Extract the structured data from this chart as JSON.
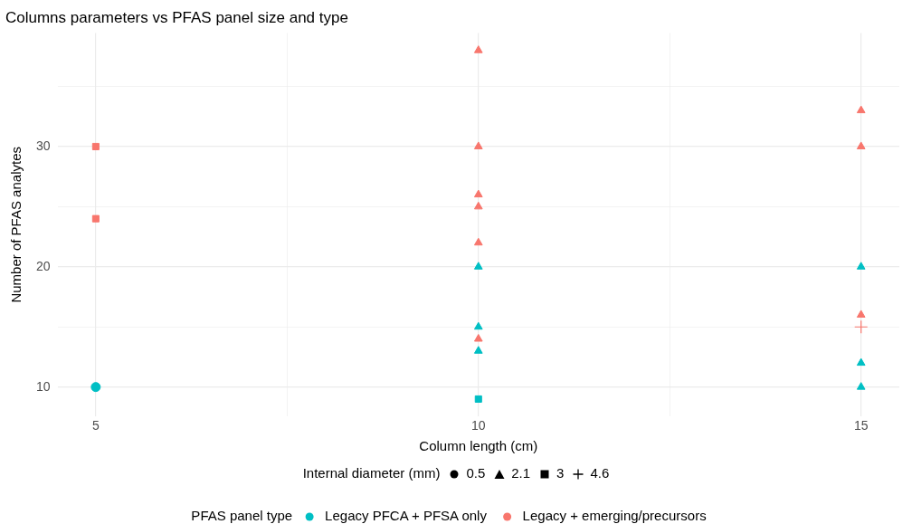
{
  "chart_data": {
    "type": "scatter",
    "title": "Columns parameters vs PFAS panel size and type",
    "xlabel": "Column length (cm)",
    "ylabel": "Number of PFAS analytes",
    "legend_title": "PFAS panel type",
    "legend": "bottom",
    "xlim": [
      4.5,
      15.5
    ],
    "xticks": [
      5,
      {
        "value": 7.5,
        "label": null
      },
      10,
      {
        "value": 12.5,
        "label": null
      },
      15
    ],
    "ylim": [
      7.55,
      39.45
    ],
    "yticks": [
      10,
      {
        "value": 15,
        "label": null
      },
      20,
      {
        "value": 25,
        "label": null
      },
      30,
      {
        "value": 35,
        "label": null
      }
    ],
    "grid": true,
    "series": [
      {
        "name": "Legacy PFCA + PFSA only",
        "color": "#00bfc4",
        "marker": [
          "circle",
          "triangle",
          "triangle",
          "triangle",
          "triangle",
          "triangle",
          "triangle",
          "square"
        ],
        "x": [
          5,
          10,
          10,
          10,
          15,
          15,
          15,
          10
        ],
        "values": [
          10,
          20,
          15,
          13,
          20,
          12,
          10,
          9
        ]
      },
      {
        "name": "Legacy + emerging/precursors",
        "color": "#f8766d",
        "marker": [
          "triangle",
          "triangle",
          "triangle",
          "triangle",
          "triangle",
          "triangle",
          "triangle",
          "triangle",
          "triangle",
          "square",
          "square",
          "cross"
        ],
        "x": [
          10,
          10,
          10,
          10,
          10,
          10,
          15,
          15,
          15,
          5,
          5,
          15
        ],
        "values": [
          38,
          30,
          26,
          25,
          22,
          14,
          33,
          30,
          16,
          30,
          24,
          15
        ]
      }
    ],
    "annotations": [
      "Internal diameter (mm)",
      "0.5",
      "2.1",
      "3",
      "4.6"
    ]
  }
}
